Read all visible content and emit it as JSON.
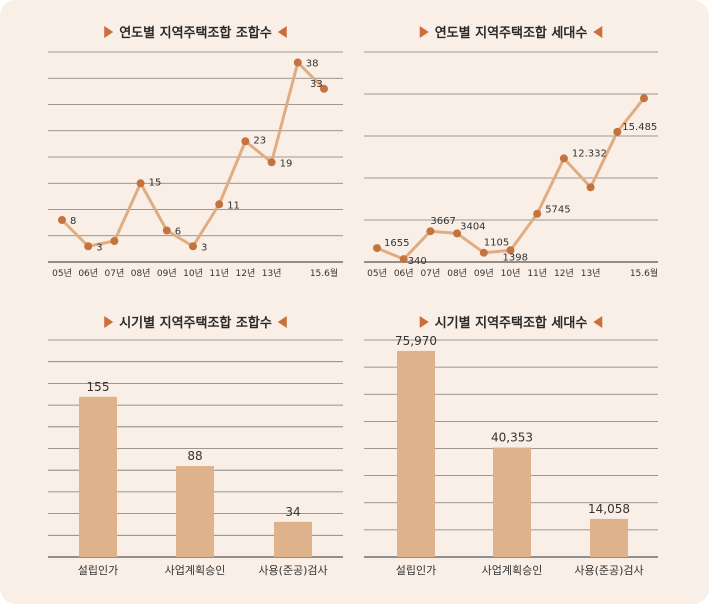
{
  "chart_data": [
    {
      "type": "line",
      "title": "연도별 지역주택조합 조합수",
      "categories": [
        "05년",
        "06년",
        "07년",
        "08년",
        "09년",
        "10년",
        "11년",
        "12년",
        "13년",
        "",
        "15.6월"
      ],
      "values": [
        8,
        3,
        4,
        15,
        6,
        3,
        11,
        23,
        19,
        38,
        33
      ],
      "data_labels": [
        "8",
        "3",
        "",
        "15",
        "6",
        "3",
        "11",
        "23",
        "19",
        "38",
        "33"
      ],
      "ylim": [
        0,
        40
      ],
      "grid": true,
      "xlabel": "",
      "ylabel": ""
    },
    {
      "type": "line",
      "title": "연도별 지역주택조합 세대수",
      "categories": [
        "05년",
        "06년",
        "07년",
        "08년",
        "09년",
        "10년",
        "11년",
        "12년",
        "13년",
        "",
        "15.6월"
      ],
      "values": [
        1655,
        340,
        3667,
        3404,
        1105,
        1398,
        5745,
        12332,
        8900,
        15485,
        19500
      ],
      "data_labels": [
        "1655",
        "340",
        "3667",
        "3404",
        "1105",
        "1398",
        "5745",
        "12.332",
        "",
        "15.485",
        ""
      ],
      "ylim": [
        0,
        25000
      ],
      "grid": true,
      "xlabel": "",
      "ylabel": ""
    },
    {
      "type": "bar",
      "title": "시기별 지역주택조합 조합수",
      "categories": [
        "설립인가",
        "사업계획승인",
        "사용(준공)검사"
      ],
      "values": [
        155,
        88,
        34
      ],
      "data_labels": [
        "155",
        "88",
        "34"
      ],
      "ylim": [
        0,
        210
      ],
      "grid": true,
      "xlabel": "",
      "ylabel": ""
    },
    {
      "type": "bar",
      "title": "시기별 지역주택조합 세대수",
      "categories": [
        "설립인가",
        "사업계획승인",
        "사용(준공)검사"
      ],
      "values": [
        75970,
        40353,
        14058
      ],
      "data_labels": [
        "75,970",
        "40,353",
        "14,058"
      ],
      "ylim": [
        0,
        80000
      ],
      "grid": true,
      "xlabel": "",
      "ylabel": ""
    }
  ],
  "colors": {
    "background": "#f9efe7",
    "line": "#e0ad83",
    "marker": "#c4733e",
    "bar": "#deb38b",
    "title_triangle": "#c9703a"
  }
}
